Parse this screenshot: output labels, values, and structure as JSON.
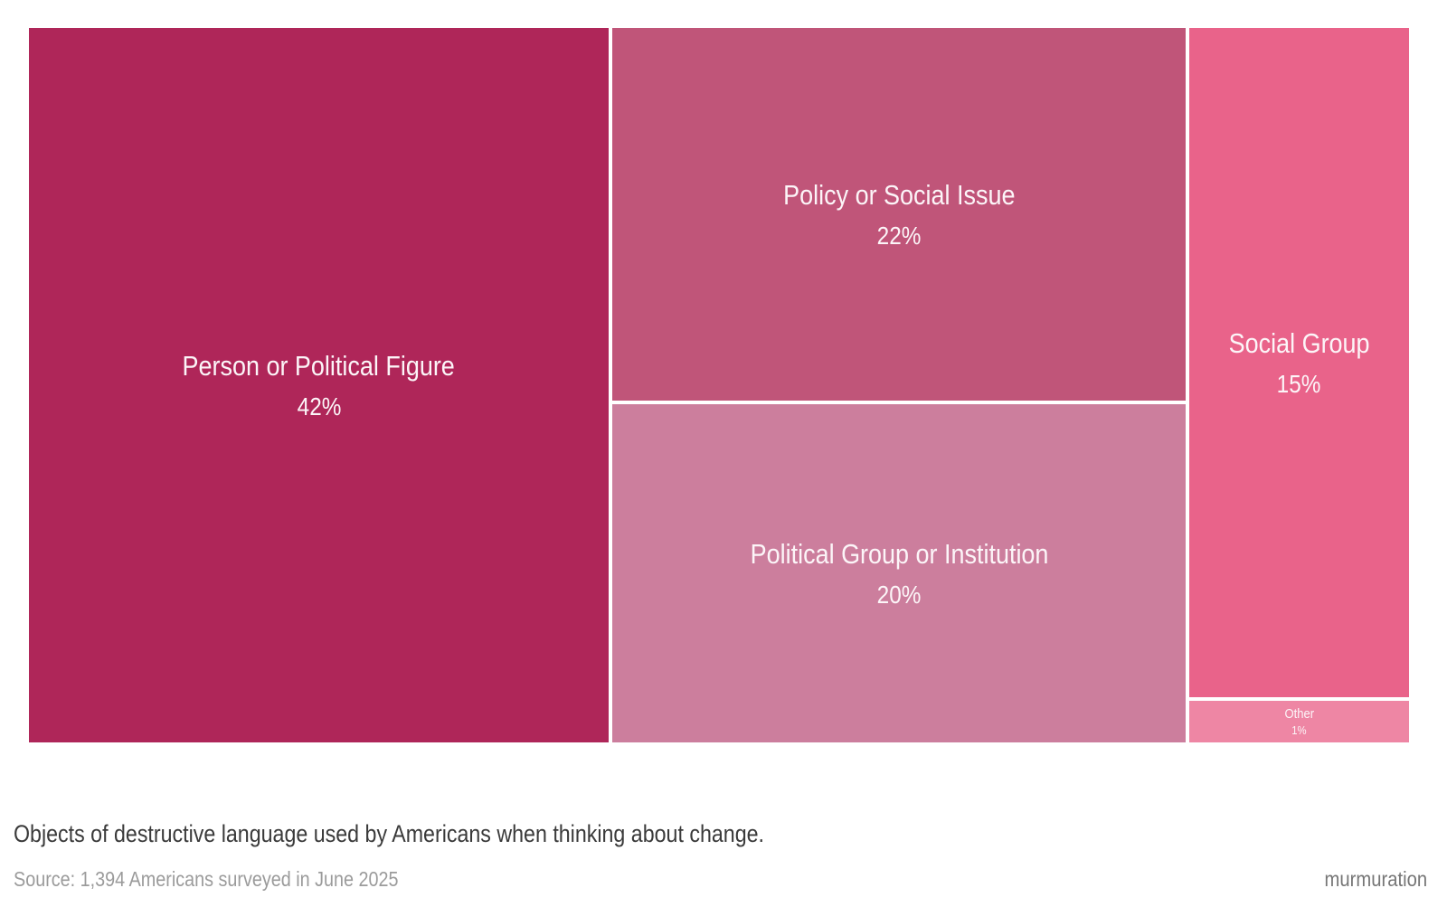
{
  "chart_data": {
    "type": "treemap",
    "title": "Objects of destructive language used by Americans when thinking about change.",
    "source_note": "Source: 1,394 Americans surveyed in June 2025",
    "brand": "murmuration",
    "value_format": "percent",
    "legend": "none",
    "series": [
      {
        "name": "Person or Political Figure",
        "value": 42,
        "color": "#AF2659"
      },
      {
        "name": "Policy or Social Issue",
        "value": 22,
        "color": "#C05579"
      },
      {
        "name": "Political Group or Institution",
        "value": 20,
        "color": "#CC7E9D"
      },
      {
        "name": "Social Group",
        "value": 15,
        "color": "#E9638A"
      },
      {
        "name": "Other",
        "value": 1,
        "color": "#EE86A4"
      }
    ]
  },
  "tiles": [
    {
      "label": "Person or Political Figure",
      "value": "42%",
      "color": "#AF2659"
    },
    {
      "label": "Policy or Social Issue",
      "value": "22%",
      "color": "#C05579"
    },
    {
      "label": "Political Group or Institution",
      "value": "20%",
      "color": "#CC7E9D"
    },
    {
      "label": "Social Group",
      "value": "15%",
      "color": "#E9638A"
    },
    {
      "label": "Other",
      "value": "1%",
      "color": "#EE86A4"
    }
  ],
  "footer": {
    "caption": "Objects of destructive language used by Americans when thinking about change.",
    "source": "Source: 1,394 Americans surveyed in June 2025",
    "brand": "murmuration"
  },
  "colors": {
    "background": "#FFFFFF",
    "tile_text": "#FCF5F8",
    "caption_text": "#3A3A3A",
    "source_text": "#9B9B9B",
    "brand_text": "#767676"
  }
}
